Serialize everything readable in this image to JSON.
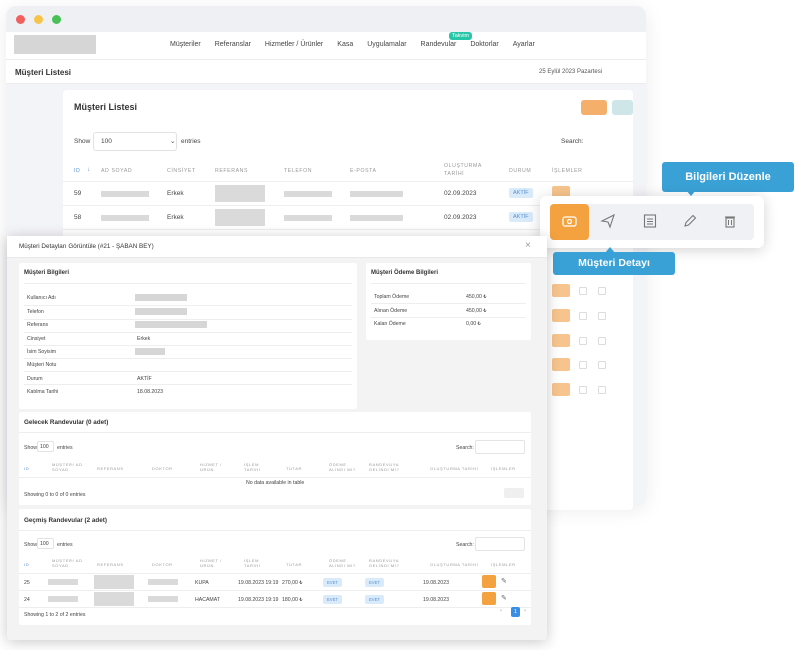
{
  "nav": {
    "items": [
      "Müşteriler",
      "Referanslar",
      "Hizmetler / Ürünler",
      "Kasa",
      "Uygulamalar",
      "Randevular",
      "Doktorlar",
      "Ayarlar"
    ],
    "takvim_badge": "Takvim"
  },
  "subbar": {
    "title": "Müşteri Listesi",
    "date": "25 Eylül 2023 Pazartesi"
  },
  "list": {
    "title": "Müşteri Listesi",
    "show_label": "Show",
    "show_value": "100",
    "entries_label": "entries",
    "search_label": "Search:",
    "headers": [
      "ID",
      "AD SOYAD",
      "CİNSİYET",
      "REFERANS",
      "TELEFON",
      "E-POSTA",
      "OLUŞTURMA TARİHİ",
      "DURUM",
      "İŞLEMLER"
    ],
    "rows": [
      {
        "id": "59",
        "gender": "Erkek",
        "date": "02.09.2023",
        "status": "AKTİF"
      },
      {
        "id": "58",
        "gender": "Erkek",
        "date": "02.09.2023",
        "status": "AKTİF"
      }
    ]
  },
  "tooltips": {
    "edit": "Bilgileri Düzenle",
    "detail": "Müşteri Detayı"
  },
  "modal": {
    "title": "Müşteri Detayları Görüntüle (#21 - ŞABAN BEY)",
    "close": "×",
    "info": {
      "title": "Müşteri Bilgileri",
      "fields": [
        {
          "label": "Kullanıcı Adı",
          "value": ""
        },
        {
          "label": "Telefon",
          "value": ""
        },
        {
          "label": "Referans",
          "value": ""
        },
        {
          "label": "Cinsiyet",
          "value": "Erkek"
        },
        {
          "label": "İsim Soyisim",
          "value": ""
        },
        {
          "label": "Müşteri Notu",
          "value": ""
        },
        {
          "label": "Durum",
          "value": "AKTİF"
        },
        {
          "label": "Katılma Tarihi",
          "value": "18.08.2023"
        }
      ]
    },
    "payment": {
      "title": "Müşteri Ödeme Bilgileri",
      "fields": [
        {
          "label": "Toplam Ödeme",
          "value": "450,00 ₺"
        },
        {
          "label": "Alınan Ödeme",
          "value": "450,00 ₺"
        },
        {
          "label": "Kalan Ödeme",
          "value": "0,00 ₺"
        }
      ]
    },
    "upcoming": {
      "title": "Gelecek Randevular (0 adet)",
      "show": "Show",
      "show_value": "100",
      "entries": "entries",
      "search": "Search:",
      "headers": [
        "ID",
        "MÜŞTERİ AD SOYAD",
        "REFERANS",
        "DOKTOR",
        "HİZMET / ÜRÜN",
        "İŞLEM TARİHİ",
        "TUTAR",
        "ÖDEME ALINDI MI?",
        "RANDEVUYA GELİNDİ Mİ?",
        "OLUŞTURMA TARİHİ",
        "İŞLEMLER"
      ],
      "empty": "No data available in table",
      "info": "Showing 0 to 0 of 0 entries"
    },
    "past": {
      "title": "Geçmiş Randevular (2 adet)",
      "show": "Show",
      "show_value": "100",
      "entries": "entries",
      "search": "Search:",
      "headers": [
        "ID",
        "MÜŞTERİ AD SOYAD",
        "REFERANS",
        "DOKTOR",
        "HİZMET / ÜRÜN",
        "İŞLEM TARİHİ",
        "TUTAR",
        "ÖDEME ALINDI MI?",
        "RANDEVUYA GELİNDİ Mİ?",
        "OLUŞTURMA TARİHİ",
        "İŞLEMLER"
      ],
      "rows": [
        {
          "id": "25",
          "service": "KUPA",
          "date": "19.08.2023 19:19",
          "amount": "270,00 ₺",
          "paid": "EVET",
          "came": "EVET",
          "created": "19.08.2023"
        },
        {
          "id": "24",
          "service": "HACAMAT",
          "date": "19.08.2023 19:19",
          "amount": "180,00 ₺",
          "paid": "EVET",
          "came": "EVET",
          "created": "19.08.2023"
        }
      ],
      "info": "Showing 1 to 2 of 2 entries",
      "page": "1"
    }
  }
}
